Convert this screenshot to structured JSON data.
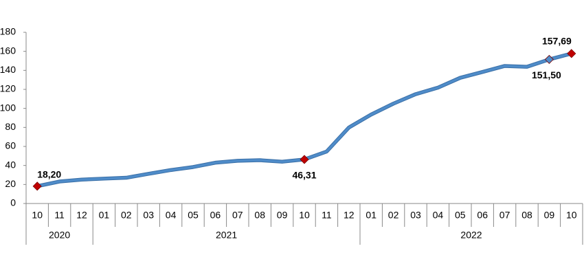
{
  "chart_data": {
    "type": "line",
    "categories": [
      "10",
      "11",
      "12",
      "01",
      "02",
      "03",
      "04",
      "05",
      "06",
      "07",
      "08",
      "09",
      "10",
      "11",
      "12",
      "01",
      "02",
      "03",
      "04",
      "05",
      "06",
      "07",
      "08",
      "09",
      "10"
    ],
    "years": [
      "2020",
      "2021",
      "2022"
    ],
    "series": [
      {
        "color": "#4f8cc9",
        "values": [
          18.2,
          23.11,
          25.15,
          26.16,
          27.09,
          31.2,
          35.17,
          38.33,
          42.89,
          44.92,
          45.52,
          43.96,
          46.31,
          54.62,
          79.89,
          93.53,
          105.01,
          114.97,
          121.82,
          132.16,
          138.31,
          144.61,
          143.75,
          151.5,
          157.69
        ],
        "value_labels": [
          "18,20",
          null,
          null,
          null,
          null,
          null,
          null,
          null,
          null,
          null,
          null,
          null,
          "46,31",
          null,
          null,
          null,
          null,
          null,
          null,
          null,
          null,
          null,
          null,
          "151,50",
          "157,69"
        ],
        "marker_colors": [
          "#c00000",
          null,
          null,
          null,
          null,
          null,
          null,
          null,
          null,
          null,
          null,
          null,
          "#c00000",
          null,
          null,
          null,
          null,
          null,
          null,
          null,
          null,
          null,
          null,
          "#4f8cc9",
          "#c00000"
        ]
      }
    ],
    "ylim": [
      0,
      180
    ],
    "yticks": [
      0,
      20,
      40,
      60,
      80,
      100,
      120,
      140,
      160,
      180
    ],
    "grid": false
  }
}
